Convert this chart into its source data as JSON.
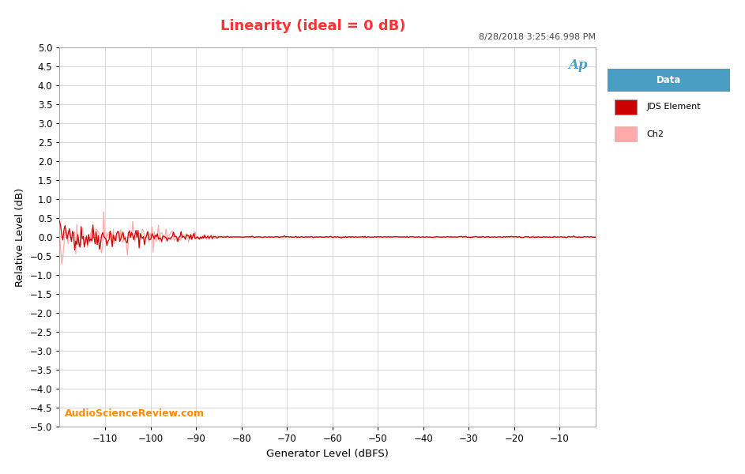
{
  "title": "Linearity (ideal = 0 dB)",
  "title_color": "#FF3333",
  "xlabel": "Generator Level (dBFS)",
  "ylabel": "Relative Level (dB)",
  "timestamp": "8/28/2018 3:25:46.998 PM",
  "watermark": "AudioScienceReview.com",
  "xlim": [
    -120,
    -2
  ],
  "ylim": [
    -5.0,
    5.0
  ],
  "xticks": [
    -110,
    -100,
    -90,
    -80,
    -70,
    -60,
    -50,
    -40,
    -30,
    -20,
    -10
  ],
  "yticks": [
    -5.0,
    -4.5,
    -4.0,
    -3.5,
    -3.0,
    -2.5,
    -2.0,
    -1.5,
    -1.0,
    -0.5,
    0.0,
    0.5,
    1.0,
    1.5,
    2.0,
    2.5,
    3.0,
    3.5,
    4.0,
    4.5,
    5.0
  ],
  "ch1_color": "#CC0000",
  "ch2_color": "#FFAAAA",
  "legend_title": "Data",
  "legend_title_bg": "#4A9EC4",
  "legend_label1": "JDS Element",
  "legend_label2": "Ch2",
  "ap_logo_color": "#4A9EC4",
  "background_color": "#FFFFFF",
  "plot_bg_color": "#FFFFFF",
  "grid_color": "#CCCCCC",
  "spine_color": "#AAAAAA"
}
